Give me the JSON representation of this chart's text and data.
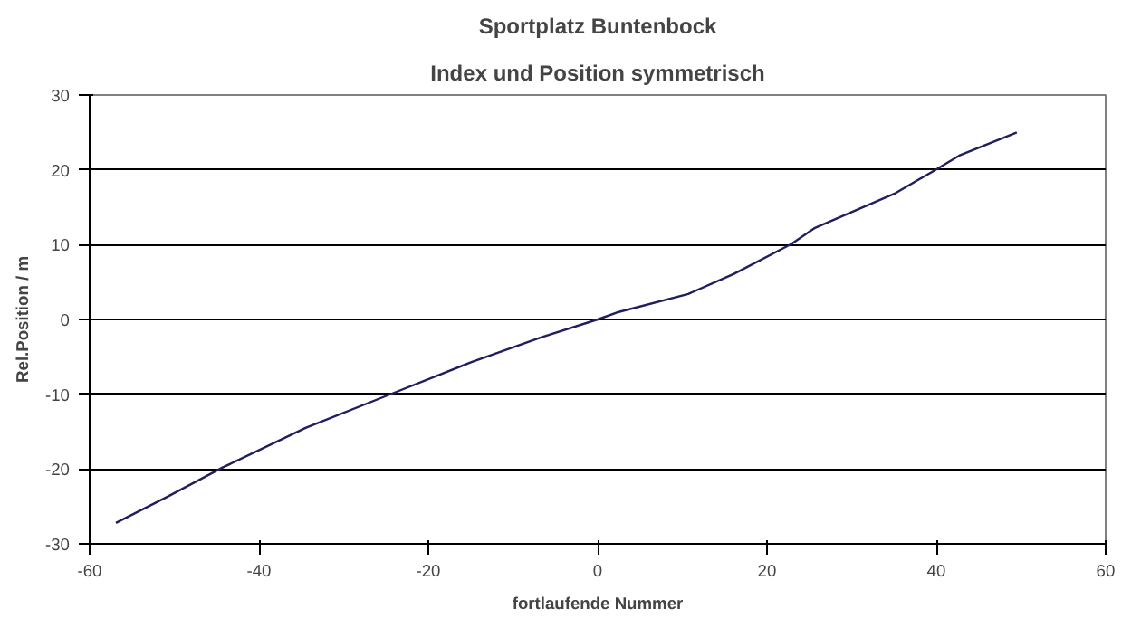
{
  "chart_data": {
    "type": "line",
    "title": "Sportplatz Buntenbock",
    "subtitle": "Index und Position symmetrisch",
    "xlabel": "fortlaufende Nummer",
    "ylabel": "Rel.Position / m",
    "x": [
      -56.9,
      -50.8,
      -44.3,
      -34.5,
      -24.7,
      -14.9,
      -6.7,
      0,
      2.5,
      10.7,
      16.1,
      22.9,
      25.6,
      35.2,
      39.9,
      42.7,
      49.5
    ],
    "series": [
      {
        "color": "#1f1f5f",
        "values": [
          -27.2,
          -23.7,
          -19.8,
          -14.5,
          -10.1,
          -5.7,
          -2.4,
          0,
          1.0,
          3.4,
          6.1,
          10.1,
          12.2,
          16.9,
          20.0,
          21.9,
          25.0
        ]
      }
    ],
    "xlim": [
      -60,
      60
    ],
    "ylim": [
      -30,
      30
    ],
    "xticks": [
      -60,
      -40,
      -20,
      0,
      20,
      40,
      60
    ],
    "yticks": [
      -30,
      -20,
      -10,
      0,
      10,
      20,
      30
    ],
    "grid": "y",
    "marker": "none",
    "line_style": "solid"
  }
}
